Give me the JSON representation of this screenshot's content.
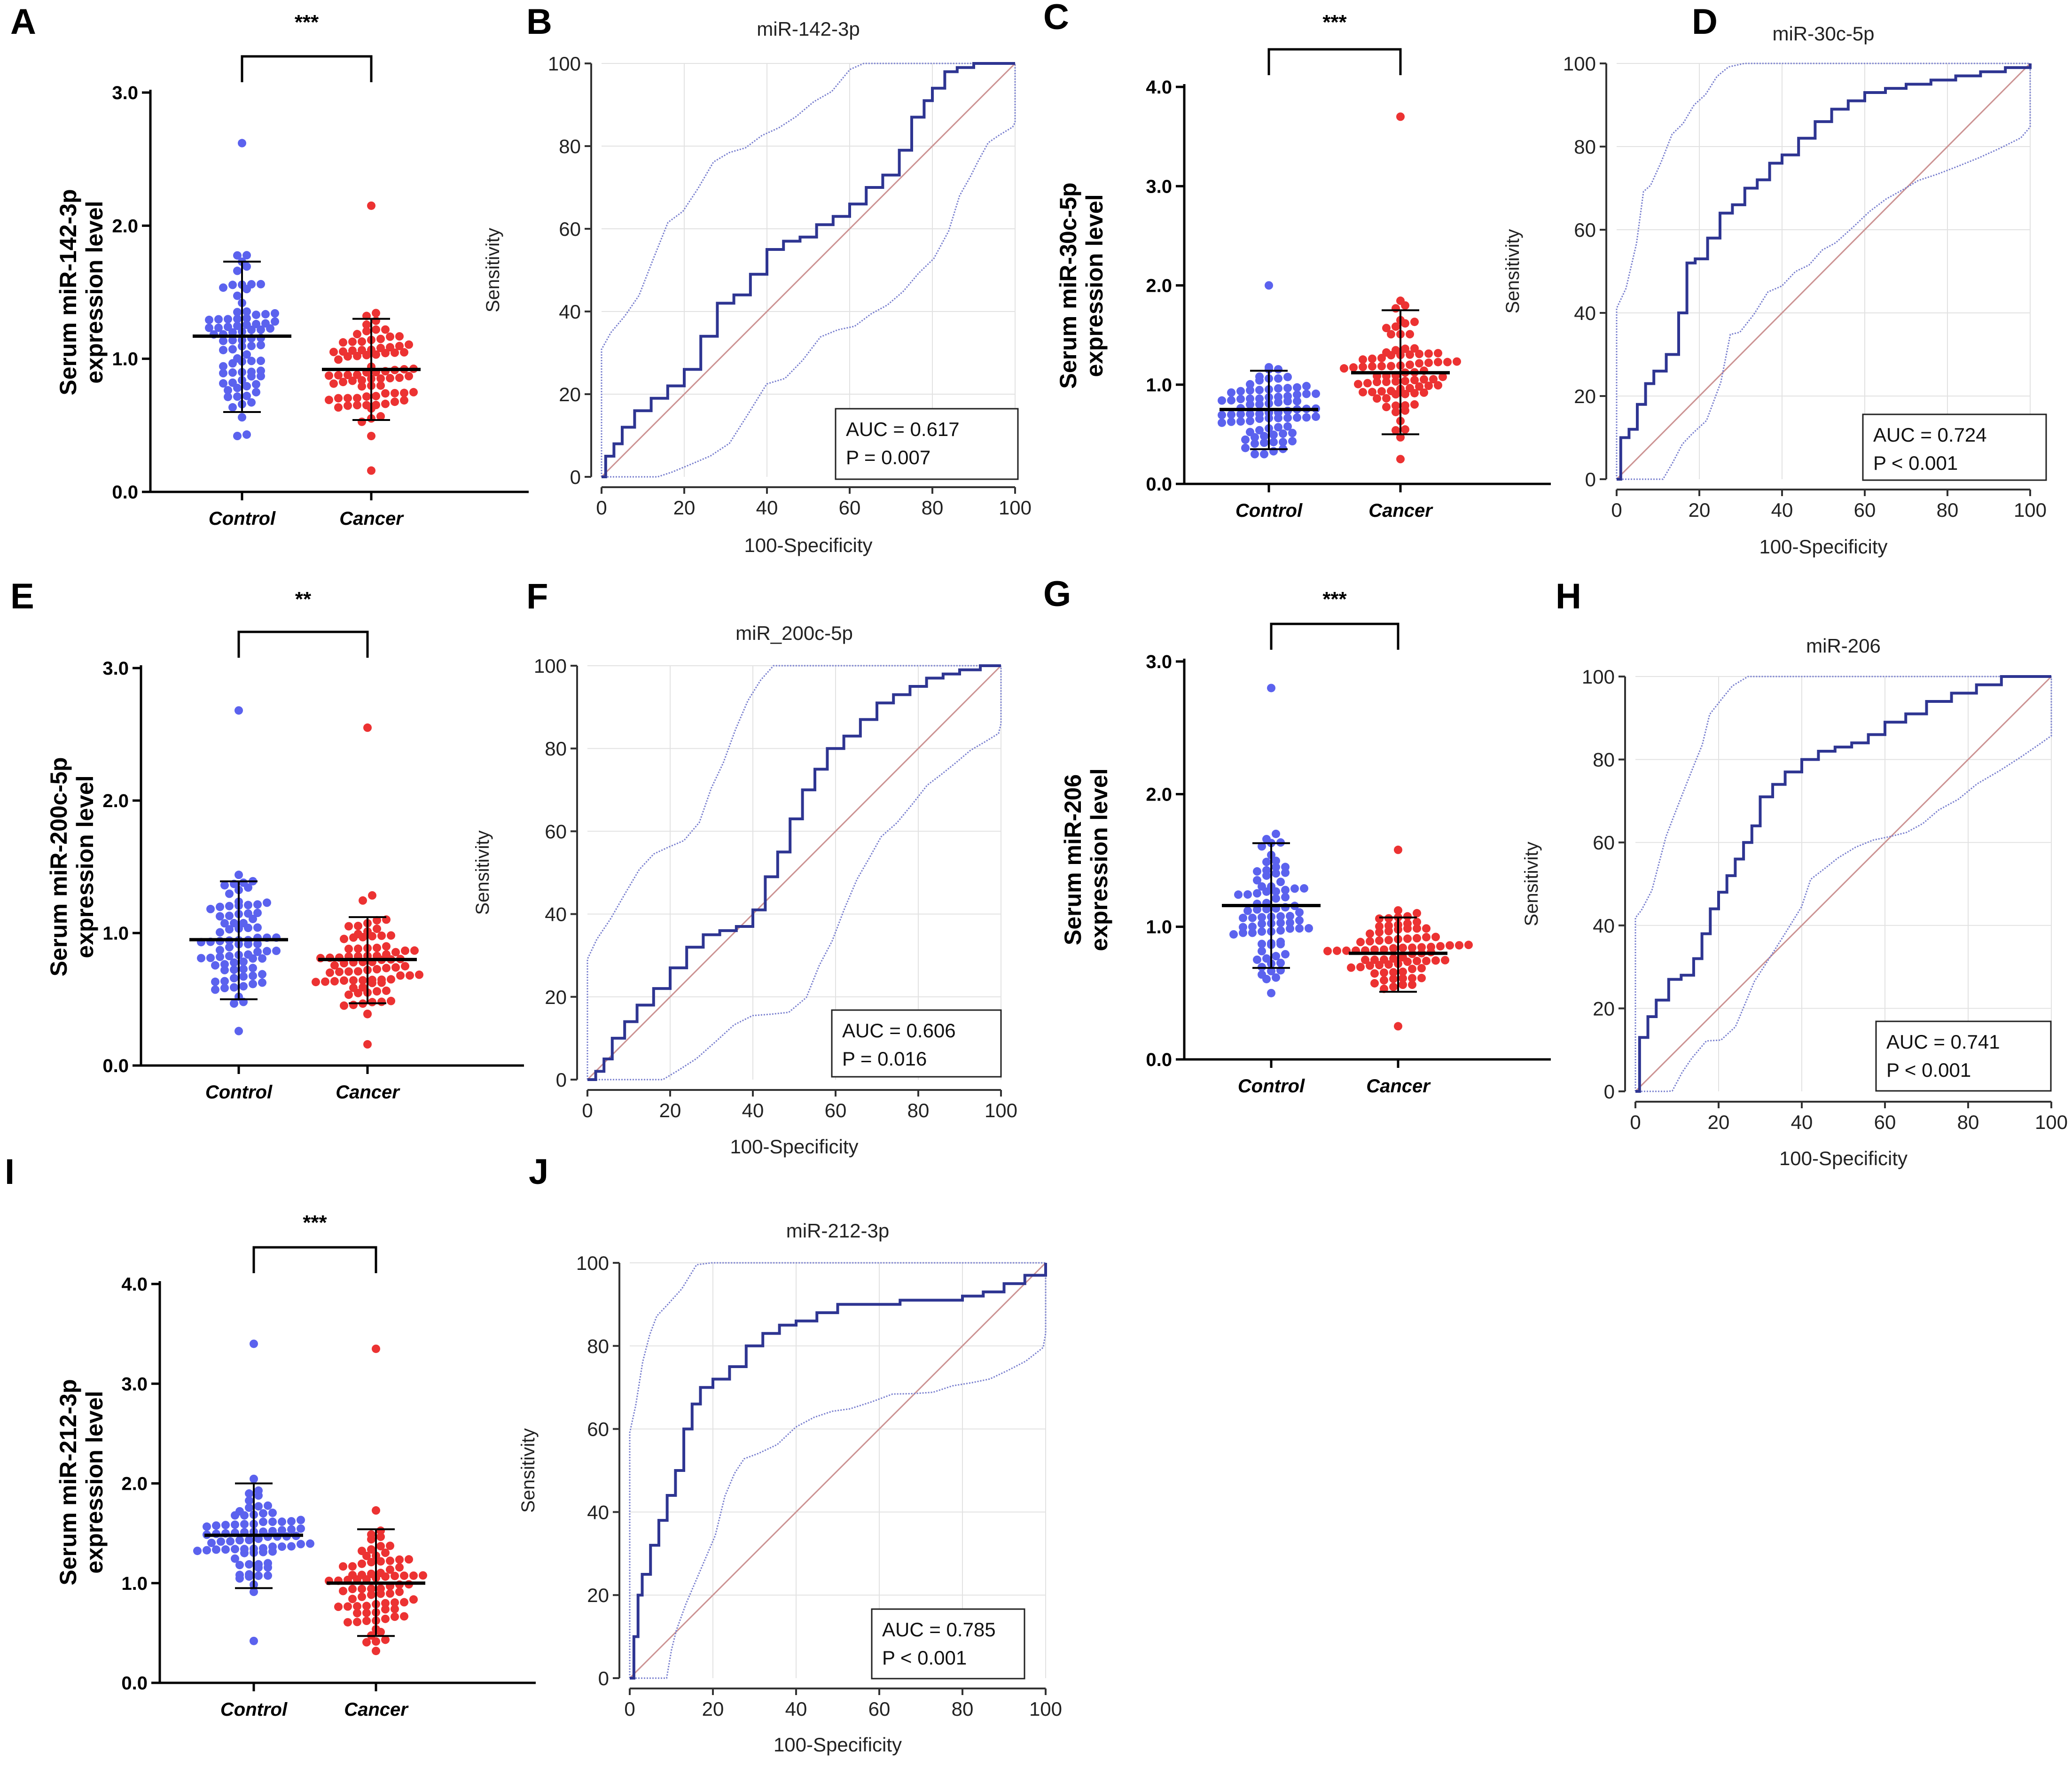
{
  "figure": {
    "colors": {
      "control": "#5b62ee",
      "cancer": "#ec3232",
      "roc_curve": "#2e3592",
      "roc_ci": "#7a80cf",
      "diagonal": "#cc9393",
      "grid": "#e2e2e2"
    }
  },
  "chart_data": [
    {
      "panel": "A",
      "type": "scatter",
      "ylabel_line1": "Serum miR-142-3p",
      "ylabel_line2": "expression level",
      "categories": [
        "Control",
        "Cancer"
      ],
      "ylim": [
        0,
        3.0
      ],
      "yticks": [
        "0.0",
        "1.0",
        "2.0",
        "3.0"
      ],
      "significance": "***",
      "control": {
        "mean": 1.17,
        "sd_low": 0.6,
        "sd_high": 1.73,
        "min": 0.42,
        "max": 2.62
      },
      "cancer": {
        "mean": 0.92,
        "sd_low": 0.54,
        "sd_high": 1.3,
        "min": 0.16,
        "max": 2.15
      }
    },
    {
      "panel": "B",
      "type": "line",
      "title": "miR-142-3p",
      "xlabel": "100-Specificity",
      "ylabel": "Sensitivity",
      "xlim": [
        0,
        100
      ],
      "ylim": [
        0,
        100
      ],
      "ticks": [
        "0",
        "20",
        "40",
        "60",
        "80",
        "100"
      ],
      "auc_text": "AUC = 0.617",
      "p_text": "P = 0.007",
      "roc_x": [
        0,
        1,
        3,
        5,
        8,
        12,
        16,
        20,
        24,
        28,
        32,
        36,
        40,
        44,
        48,
        52,
        56,
        60,
        64,
        68,
        72,
        75,
        78,
        80,
        83,
        86,
        90,
        94,
        97,
        100
      ],
      "roc_y": [
        0,
        5,
        8,
        12,
        16,
        19,
        22,
        26,
        34,
        42,
        44,
        49,
        55,
        57,
        58,
        61,
        63,
        66,
        70,
        73,
        79,
        87,
        91,
        94,
        98,
        99,
        100,
        100,
        100,
        100
      ]
    },
    {
      "panel": "C",
      "type": "scatter",
      "ylabel_line1": "Serum miR-30c-5p",
      "ylabel_line2": "expression level",
      "categories": [
        "Control",
        "Cancer"
      ],
      "ylim": [
        0,
        4.0
      ],
      "yticks": [
        "0.0",
        "1.0",
        "2.0",
        "3.0",
        "4.0"
      ],
      "significance": "***",
      "control": {
        "mean": 0.75,
        "sd_low": 0.35,
        "sd_high": 1.14,
        "min": 0.3,
        "max": 2.0
      },
      "cancer": {
        "mean": 1.12,
        "sd_low": 0.5,
        "sd_high": 1.75,
        "min": 0.25,
        "max": 3.7
      }
    },
    {
      "panel": "D",
      "type": "line",
      "title": "miR-30c-5p",
      "xlabel": "100-Specificity",
      "ylabel": "Sensitivity",
      "xlim": [
        0,
        100
      ],
      "ylim": [
        0,
        100
      ],
      "ticks": [
        "0",
        "20",
        "40",
        "60",
        "80",
        "100"
      ],
      "auc_text": "AUC = 0.724",
      "p_text": "P < 0.001",
      "roc_x": [
        0,
        1,
        3,
        5,
        7,
        9,
        12,
        15,
        17,
        19,
        22,
        25,
        28,
        31,
        34,
        37,
        40,
        44,
        48,
        52,
        56,
        60,
        65,
        70,
        76,
        82,
        88,
        94,
        100
      ],
      "roc_y": [
        0,
        10,
        12,
        18,
        23,
        26,
        30,
        40,
        52,
        53,
        58,
        64,
        66,
        70,
        72,
        76,
        78,
        82,
        86,
        89,
        91,
        93,
        94,
        95,
        96,
        97,
        98,
        99,
        100
      ]
    },
    {
      "panel": "E",
      "type": "scatter",
      "ylabel_line1": "Serum miR-200c-5p",
      "ylabel_line2": "expression level",
      "categories": [
        "Control",
        "Cancer"
      ],
      "ylim": [
        0,
        3.0
      ],
      "yticks": [
        "0.0",
        "1.0",
        "2.0",
        "3.0"
      ],
      "significance": "**",
      "control": {
        "mean": 0.95,
        "sd_low": 0.5,
        "sd_high": 1.39,
        "min": 0.26,
        "max": 2.68
      },
      "cancer": {
        "mean": 0.8,
        "sd_low": 0.47,
        "sd_high": 1.12,
        "min": 0.16,
        "max": 2.55
      }
    },
    {
      "panel": "F",
      "type": "line",
      "title": "miR_200c-5p",
      "xlabel": "100-Specificity",
      "ylabel": "Sensitivity",
      "xlim": [
        0,
        100
      ],
      "ylim": [
        0,
        100
      ],
      "ticks": [
        "0",
        "20",
        "40",
        "60",
        "80",
        "100"
      ],
      "auc_text": "AUC = 0.606",
      "p_text": "P = 0.016",
      "roc_x": [
        0,
        2,
        4,
        6,
        9,
        12,
        16,
        20,
        24,
        28,
        32,
        36,
        40,
        43,
        46,
        49,
        52,
        55,
        58,
        62,
        66,
        70,
        74,
        78,
        82,
        86,
        90,
        95,
        100
      ],
      "roc_y": [
        0,
        2,
        5,
        10,
        14,
        18,
        22,
        27,
        32,
        35,
        36,
        37,
        41,
        49,
        55,
        63,
        70,
        75,
        80,
        83,
        87,
        91,
        93,
        95,
        97,
        98,
        99,
        100,
        100
      ]
    },
    {
      "panel": "G",
      "type": "scatter",
      "ylabel_line1": "Serum miR-206",
      "ylabel_line2": "expression level",
      "categories": [
        "Control",
        "Cancer"
      ],
      "ylim": [
        0,
        3.0
      ],
      "yticks": [
        "0.0",
        "1.0",
        "2.0",
        "3.0"
      ],
      "significance": "***",
      "control": {
        "mean": 1.16,
        "sd_low": 0.69,
        "sd_high": 1.63,
        "min": 0.5,
        "max": 2.8
      },
      "cancer": {
        "mean": 0.8,
        "sd_low": 0.51,
        "sd_high": 1.07,
        "min": 0.25,
        "max": 1.58
      }
    },
    {
      "panel": "H",
      "type": "line",
      "title": "miR-206",
      "xlabel": "100-Specificity",
      "ylabel": "Sensitivity",
      "xlim": [
        0,
        100
      ],
      "ylim": [
        0,
        100
      ],
      "ticks": [
        "0",
        "20",
        "40",
        "60",
        "80",
        "100"
      ],
      "auc_text": "AUC = 0.741",
      "p_text": "P < 0.001",
      "roc_x": [
        0,
        1,
        3,
        5,
        8,
        11,
        14,
        16,
        18,
        20,
        22,
        24,
        26,
        28,
        30,
        33,
        36,
        40,
        44,
        48,
        52,
        56,
        60,
        65,
        70,
        76,
        82,
        88,
        94,
        100
      ],
      "roc_y": [
        0,
        13,
        18,
        22,
        27,
        28,
        32,
        38,
        44,
        48,
        52,
        56,
        60,
        64,
        71,
        74,
        77,
        80,
        82,
        83,
        84,
        86,
        89,
        91,
        94,
        96,
        98,
        100,
        100,
        100
      ]
    },
    {
      "panel": "I",
      "type": "scatter",
      "ylabel_line1": "Serum miR-212-3p",
      "ylabel_line2": "expression level",
      "categories": [
        "Control",
        "Cancer"
      ],
      "ylim": [
        0,
        4.0
      ],
      "yticks": [
        "0.0",
        "1.0",
        "2.0",
        "3.0",
        "4.0"
      ],
      "significance": "***",
      "control": {
        "mean": 1.48,
        "sd_low": 0.95,
        "sd_high": 2.0,
        "min": 0.42,
        "max": 3.4
      },
      "cancer": {
        "mean": 1.0,
        "sd_low": 0.47,
        "sd_high": 1.54,
        "min": 0.32,
        "max": 3.35
      }
    },
    {
      "panel": "J",
      "type": "line",
      "title": "miR-212-3p",
      "xlabel": "100-Specificity",
      "ylabel": "Sensitivity",
      "xlim": [
        0,
        100
      ],
      "ylim": [
        0,
        100
      ],
      "ticks": [
        "0",
        "20",
        "40",
        "60",
        "80",
        "100"
      ],
      "auc_text": "AUC = 0.785",
      "p_text": "P < 0.001",
      "roc_x": [
        0,
        1,
        2,
        3,
        5,
        7,
        9,
        11,
        13,
        15,
        17,
        20,
        24,
        28,
        32,
        36,
        40,
        45,
        50,
        55,
        60,
        65,
        70,
        75,
        80,
        85,
        90,
        95,
        100
      ],
      "roc_y": [
        0,
        10,
        20,
        25,
        32,
        38,
        44,
        50,
        60,
        66,
        70,
        72,
        75,
        80,
        83,
        85,
        86,
        88,
        90,
        90,
        90,
        91,
        91,
        91,
        92,
        93,
        95,
        97,
        100
      ]
    }
  ]
}
